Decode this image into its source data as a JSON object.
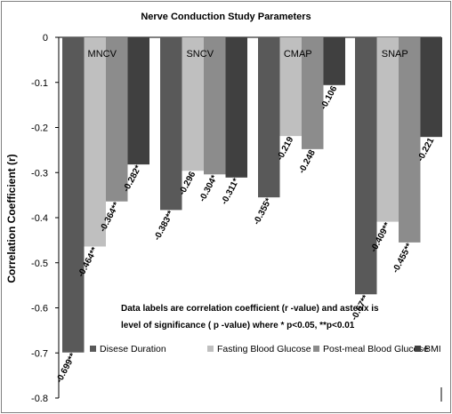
{
  "chart_data": {
    "type": "bar",
    "title": "Nerve  Conduction Study Parameters",
    "ylabel": "Correlation Coefficient (r)",
    "xlabel": "",
    "ylim": [
      -0.8,
      0
    ],
    "yticks": [
      0,
      -0.1,
      -0.2,
      -0.3,
      -0.4,
      -0.5,
      -0.6,
      -0.7,
      -0.8
    ],
    "ytick_labels": [
      "0",
      "-0.1",
      "-0.2",
      "-0.3",
      "-0.4",
      "-0.5",
      "-0.6",
      "-0.7",
      "-0.8"
    ],
    "categories": [
      "MNCV",
      "SNCV",
      "CMAP",
      "SNAP"
    ],
    "series": [
      {
        "name": "Disese Duration",
        "color": "#595959",
        "values": [
          -0.699,
          -0.383,
          -0.355,
          -0.57
        ],
        "labels": [
          "-0.699**",
          "-0.383**",
          "-0.355*",
          "-0.57**"
        ]
      },
      {
        "name": "Fasting Blood Glucose",
        "color": "#bfbfbf",
        "values": [
          -0.464,
          -0.296,
          -0.219,
          -0.409
        ],
        "labels": [
          "-0.464**",
          "-0.296",
          "-0.219",
          "-0.409**"
        ]
      },
      {
        "name": "Post-meal Blood Glucose",
        "color": "#8c8c8c",
        "values": [
          -0.364,
          -0.304,
          -0.248,
          -0.455
        ],
        "labels": [
          "-0.364**",
          "-0.304*",
          "-0.248",
          "-0.455**"
        ]
      },
      {
        "name": "BMI",
        "color": "#404040",
        "values": [
          -0.282,
          -0.311,
          -0.106,
          -0.221
        ],
        "labels": [
          "-0.282*",
          "-0.311*",
          "-0.106",
          "-0.221"
        ]
      }
    ],
    "annotation": {
      "line1": "Data labels are correlation coefficient (r -value) and asterix  is",
      "line2": "level  of significance ( p -value) where   * p<0.05, **p<0.01"
    },
    "legend_position": "bottom-inside",
    "grid": false
  }
}
